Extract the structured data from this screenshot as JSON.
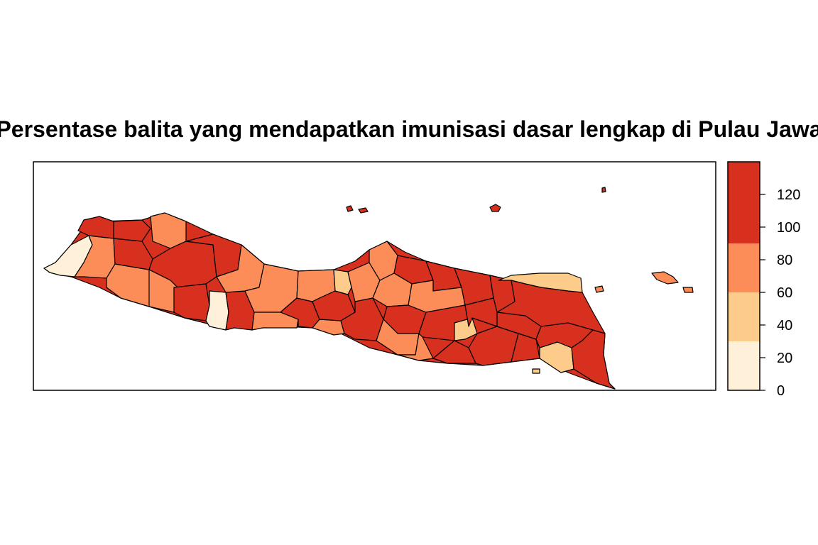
{
  "title": "Persentase balita yang mendapatkan imunisasi dasar lengkap di Pulau Jawa",
  "legend": {
    "breaks": [
      0,
      30,
      60,
      90,
      140
    ],
    "colors": [
      "#FEF0D9",
      "#FDCC8A",
      "#FC8D59",
      "#D7301F"
    ],
    "tick_labels": [
      "0",
      "20",
      "40",
      "60",
      "80",
      "100",
      "120"
    ],
    "tick_values": [
      0,
      20,
      40,
      60,
      80,
      100,
      120
    ],
    "range": [
      0,
      140
    ]
  },
  "colors": {
    "band1": "#FEF0D9",
    "band2": "#FDCC8A",
    "band3": "#FC8D59",
    "band4": "#D7301F",
    "border": "#000000"
  }
}
